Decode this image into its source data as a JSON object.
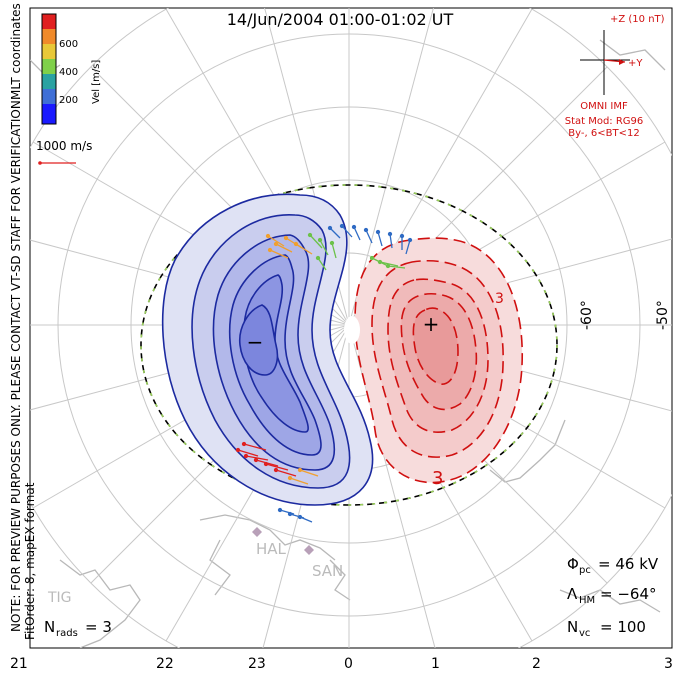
{
  "header": {
    "title": "14/Jun/2004 01:00-01:02 UT"
  },
  "colorbar": {
    "coord_label": "MLT coordinates",
    "vel_label": "Vel [m/s]",
    "ticks": [
      "600",
      "400",
      "200"
    ],
    "colors": [
      "#1a1aff",
      "#3f6fd6",
      "#2aa2a2",
      "#7fd04a",
      "#e8c838",
      "#f08a2a",
      "#e02020"
    ]
  },
  "reference_vector": {
    "label": "1000 m/s"
  },
  "imf": {
    "z_label": "+Z (10 nT)",
    "y_label": "+Y",
    "source": "OMNI IMF",
    "model": "Stat Mod: RG96",
    "condition": "By-, 6<BT<12"
  },
  "notice": {
    "line1": "NOTE: FOR PREVIEW PURPOSES ONLY. PLEASE CONTACT VT-SD STAFF FOR VERIFICATION.",
    "line2": "FitOrder: 8, mapEX format"
  },
  "lat_labels": [
    "-60°",
    "-50°"
  ],
  "mlt_labels": [
    "21",
    "22",
    "23",
    "0",
    "1",
    "2",
    "3"
  ],
  "stations": [
    "HAL",
    "SAN",
    "TIG"
  ],
  "contour_labels": [
    "3",
    "3"
  ],
  "markers": {
    "min": "−",
    "max": "+"
  },
  "stats": {
    "phi_pc": {
      "sym": "Φ",
      "sub": "pc",
      "value": "= 46 kV"
    },
    "lambda_hm": {
      "sym": "Λ",
      "sub": "HM",
      "value": "= −64°"
    },
    "n_vc": {
      "sym": "N",
      "sub": "vc",
      "value": "= 100"
    },
    "n_rads": {
      "sym": "N",
      "sub": "rads",
      "value": "= 3"
    }
  }
}
